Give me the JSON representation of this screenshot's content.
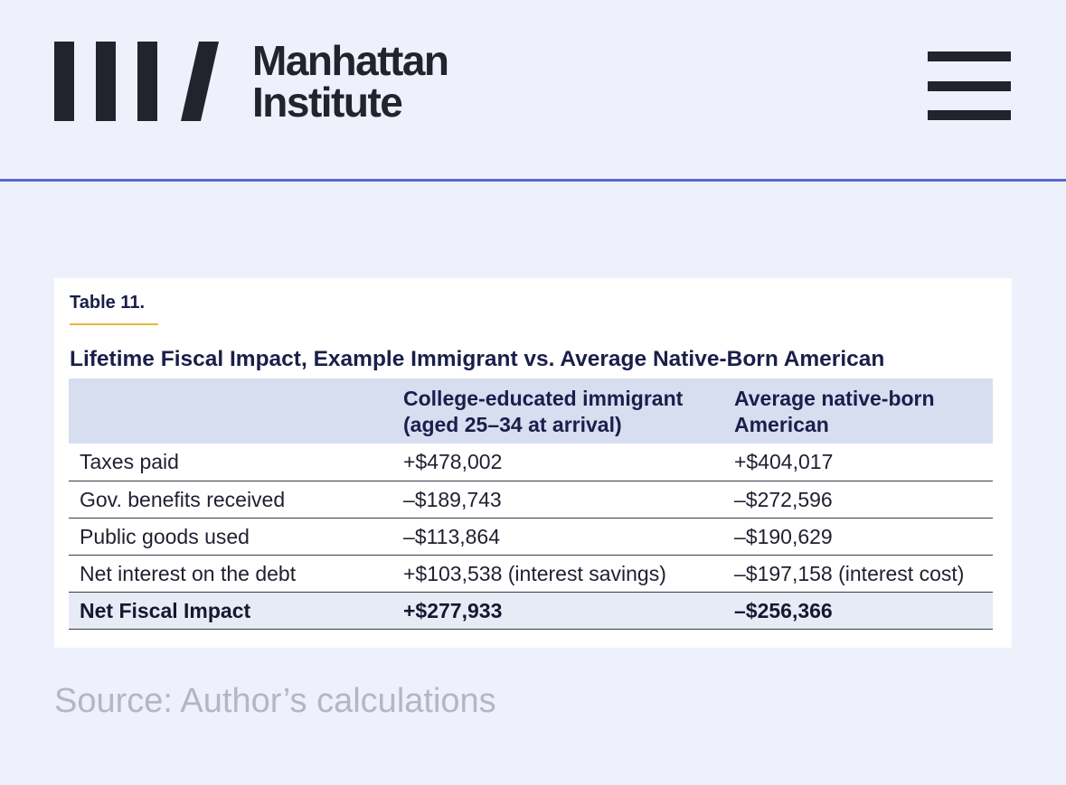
{
  "header": {
    "logo_line1": "Manhattan",
    "logo_line2": "Institute"
  },
  "table": {
    "label": "Table 11.",
    "title": "Lifetime Fiscal Impact, Example Immigrant vs. Average Native-Born American",
    "columns": [
      "",
      "College-educated immigrant (aged 25–34 at arrival)",
      "Average native-born American"
    ],
    "rows": [
      [
        "Taxes paid",
        "+$478,002",
        "+$404,017"
      ],
      [
        "Gov. benefits received",
        "–$189,743",
        "–$272,596"
      ],
      [
        "Public goods used",
        "–$113,864",
        "–$190,629"
      ],
      [
        "Net interest on the debt",
        "+$103,538 (interest savings)",
        "–$197,158 (interest cost)"
      ],
      [
        "Net Fiscal Impact",
        "+$277,933",
        "–$256,366"
      ]
    ]
  },
  "source": "Source: Author’s calculations",
  "colors": {
    "background": "#eef0fc",
    "header_rule": "#5868cc",
    "table_header_bg": "#d6def0",
    "label_underline": "#e8b43a"
  }
}
